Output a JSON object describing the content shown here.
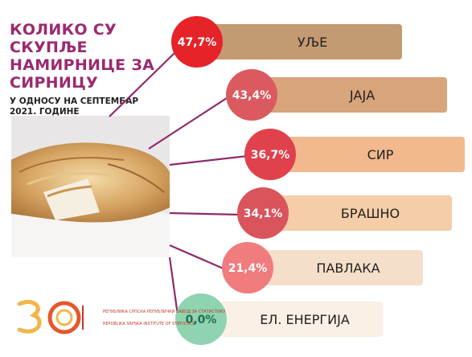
{
  "title": "КОЛИКО СУ\nСКУПЉЕ\nНАМИРНИЦЕ ЗА\nСИРНИЦУ",
  "subtitle": "У ОДНОСУ НА СЕПТЕМБАР\n2021. ГОДИНЕ",
  "logo": {
    "org_sr": "РЕПУБЛИКА СРПСКА\nРЕПУБЛИЧКИ ЗАВОД ЗА СТАТИСТИКУ",
    "org_en": "REPUBLIKA SRPSKA\nINSTITUTE OF STATISTICS"
  },
  "colors": {
    "title": "#9b2a6f",
    "connector": "#8e2a6a"
  },
  "chart_data": {
    "type": "bar",
    "title": "КОЛИКО СУ СКУПЉЕ НАМИРНИЦЕ ЗА СИРНИЦУ",
    "subtitle": "У ОДНОСУ НА СЕПТЕМБАР 2021. ГОДИНЕ",
    "unit": "%",
    "categories": [
      "УЉЕ",
      "ЈАЈА",
      "СИР",
      "БРАШНО",
      "ПАВЛАКА",
      "ЕЛ. ЕНЕРГИЈА"
    ],
    "values": [
      47.7,
      43.4,
      36.7,
      34.1,
      21.4,
      0.0
    ],
    "labels": [
      "47,7%",
      "43,4%",
      "36,7%",
      "34,1%",
      "21,4%",
      "0,0%"
    ],
    "circle_colors": [
      "#e52329",
      "#db5a5f",
      "#e0414d",
      "#d9545b",
      "#f07c7e",
      "#8fd3b0"
    ],
    "bar_colors": [
      "#c49a72",
      "#d8a47c",
      "#f2b98e",
      "#f5cda8",
      "#f6dfca",
      "#fbf0e6"
    ],
    "label_colors": [
      "#ffffff",
      "#ffffff",
      "#ffffff",
      "#ffffff",
      "#ffffff",
      "#1f6f52"
    ]
  }
}
